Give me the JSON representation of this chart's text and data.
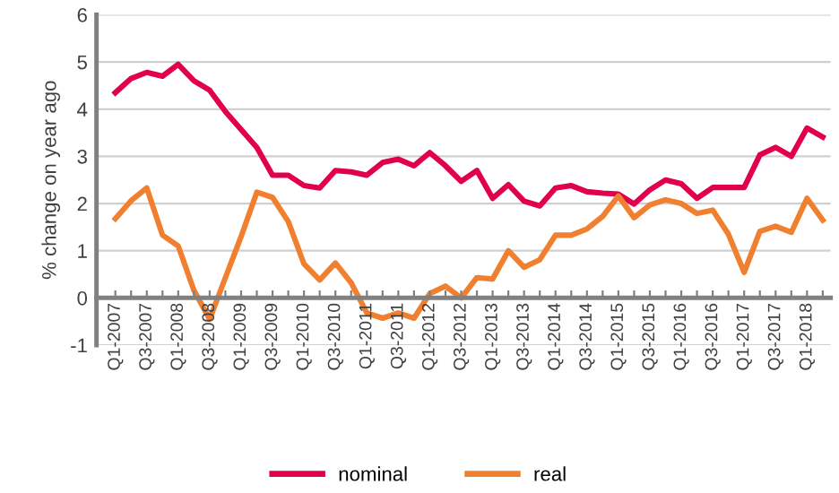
{
  "chart_data": {
    "type": "line",
    "ylabel": "% change on year ago",
    "categories": [
      "Q1-2007",
      null,
      "Q3-2007",
      null,
      "Q1-2008",
      null,
      "Q3-2008",
      null,
      "Q1-2009",
      null,
      "Q3-2009",
      null,
      "Q1-2010",
      null,
      "Q3-2010",
      null,
      "Q1-2011",
      null,
      "Q3-2011",
      null,
      "Q1-2012",
      null,
      "Q3-2012",
      null,
      "Q1-2013",
      null,
      "Q3-2013",
      null,
      "Q1-2014",
      null,
      "Q3-2014",
      null,
      "Q1-2015",
      null,
      "Q3-2015",
      null,
      "Q1-2016",
      null,
      "Q3-2016",
      null,
      "Q1-2017",
      null,
      "Q3-2017",
      null,
      "Q1-2018",
      null
    ],
    "series": [
      {
        "name": "nominal",
        "color": "#e0004d",
        "values": [
          4.35,
          4.65,
          4.78,
          4.7,
          4.95,
          4.6,
          4.4,
          3.95,
          3.57,
          3.19,
          2.6,
          2.6,
          2.38,
          2.33,
          2.7,
          2.67,
          2.6,
          2.87,
          2.94,
          2.8,
          3.08,
          2.8,
          2.47,
          2.7,
          2.11,
          2.4,
          2.05,
          1.95,
          2.33,
          2.38,
          2.25,
          2.22,
          2.2,
          1.99,
          2.29,
          2.5,
          2.42,
          2.11,
          2.34,
          2.34,
          2.34,
          3.03,
          3.19,
          3.0,
          3.6,
          3.41
        ]
      },
      {
        "name": "real",
        "color": "#f08030",
        "values": [
          1.68,
          2.06,
          2.33,
          1.33,
          1.1,
          0.16,
          -0.45,
          0.43,
          1.3,
          2.24,
          2.13,
          1.62,
          0.72,
          0.38,
          0.74,
          0.32,
          -0.32,
          -0.43,
          -0.32,
          -0.43,
          0.09,
          0.25,
          0,
          0.43,
          0.4,
          1.0,
          0.65,
          0.81,
          1.33,
          1.33,
          1.46,
          1.73,
          2.16,
          1.7,
          1.97,
          2.08,
          2.0,
          1.79,
          1.86,
          1.35,
          0.54,
          1.41,
          1.52,
          1.39,
          2.11,
          1.65
        ]
      }
    ],
    "ylim": [
      -1,
      6
    ],
    "yticks": [
      -1,
      0,
      1,
      2,
      3,
      4,
      5,
      6
    ],
    "grid": "y",
    "legend": "bottom",
    "marker": "none",
    "line_style": "solid"
  }
}
